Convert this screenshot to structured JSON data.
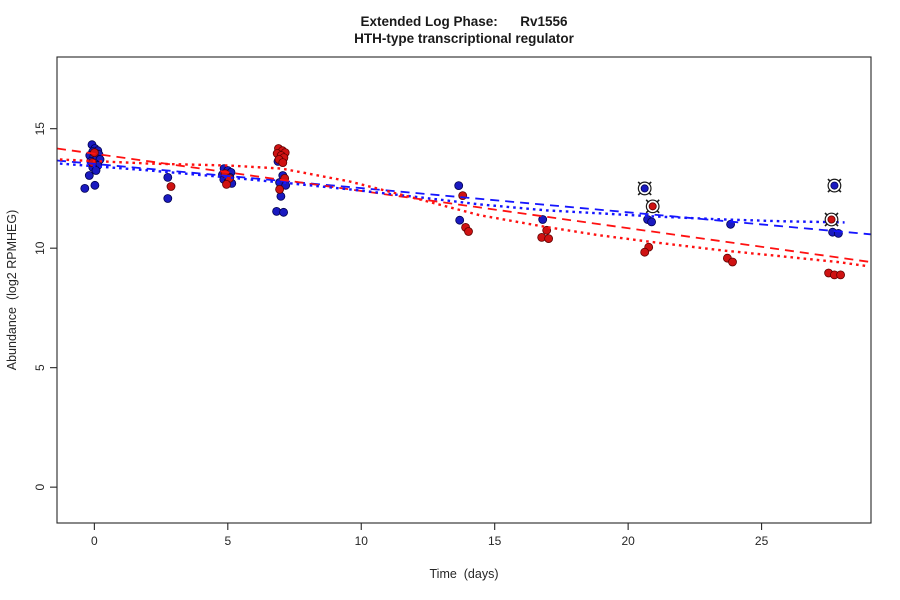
{
  "title": {
    "line1": "Extended Log Phase:      Rv1556",
    "line2": "HTH-type transcriptional regulator"
  },
  "colors": {
    "blue_point": "#1a1ac0",
    "blue_point_stroke": "#000050",
    "red_point": "#cf1212",
    "red_point_stroke": "#600000",
    "blue_line": "#1515ff",
    "red_line": "#ff1111",
    "outline_marker": "#1a1a1a",
    "axis": "#262626"
  },
  "chart_data": {
    "type": "scatter",
    "title": "Extended Log Phase:      Rv1556",
    "subtitle": "HTH-type transcriptional regulator",
    "xlabel": "Time  (days)",
    "ylabel": "Abundance  (log2 RPMHEG)",
    "xlim": [
      -1.4,
      29.1
    ],
    "ylim": [
      -1.5,
      18.0
    ],
    "x_ticks": [
      0,
      5,
      10,
      15,
      20,
      25
    ],
    "y_ticks": [
      0,
      5,
      10,
      15
    ],
    "grid": false,
    "legend": "none",
    "series": [
      {
        "name": "blue-points",
        "type": "scatter",
        "color": "#1a1ac0",
        "points": [
          [
            -0.09,
            14.33
          ],
          [
            0.02,
            14.17
          ],
          [
            0.13,
            14.08
          ],
          [
            -0.06,
            14.04
          ],
          [
            0.06,
            13.96
          ],
          [
            0.17,
            13.92
          ],
          [
            -0.17,
            13.88
          ],
          [
            -0.02,
            13.83
          ],
          [
            0.09,
            13.75
          ],
          [
            0.21,
            13.71
          ],
          [
            -0.13,
            13.63
          ],
          [
            0.02,
            13.54
          ],
          [
            0.13,
            13.46
          ],
          [
            -0.06,
            13.38
          ],
          [
            0.06,
            13.25
          ],
          [
            -0.19,
            13.04
          ],
          [
            -0.36,
            12.5
          ],
          [
            0.02,
            12.63
          ],
          [
            2.75,
            12.96
          ],
          [
            2.75,
            12.08
          ],
          [
            4.86,
            13.33
          ],
          [
            5.0,
            13.25
          ],
          [
            5.12,
            13.17
          ],
          [
            4.8,
            13.08
          ],
          [
            4.95,
            13.0
          ],
          [
            5.08,
            12.96
          ],
          [
            4.85,
            12.88
          ],
          [
            5.02,
            12.79
          ],
          [
            5.15,
            12.71
          ],
          [
            6.95,
            13.92
          ],
          [
            7.08,
            13.75
          ],
          [
            6.88,
            13.63
          ],
          [
            7.06,
            13.04
          ],
          [
            6.94,
            12.75
          ],
          [
            7.17,
            12.63
          ],
          [
            6.99,
            12.17
          ],
          [
            6.83,
            11.54
          ],
          [
            7.09,
            11.5
          ],
          [
            13.65,
            12.62
          ],
          [
            13.69,
            11.17
          ],
          [
            16.8,
            11.2
          ],
          [
            20.73,
            11.2
          ],
          [
            20.88,
            11.1
          ],
          [
            23.84,
            11.0
          ],
          [
            27.66,
            10.67
          ],
          [
            27.88,
            10.62
          ]
        ]
      },
      {
        "name": "red-points",
        "type": "scatter",
        "color": "#cf1212",
        "points": [
          [
            0.0,
            14.0
          ],
          [
            -0.08,
            13.58
          ],
          [
            2.87,
            12.58
          ],
          [
            4.9,
            13.12
          ],
          [
            5.06,
            12.92
          ],
          [
            4.95,
            12.67
          ],
          [
            6.9,
            14.17
          ],
          [
            7.05,
            14.08
          ],
          [
            7.15,
            14.0
          ],
          [
            6.85,
            13.96
          ],
          [
            7.0,
            13.88
          ],
          [
            7.1,
            13.79
          ],
          [
            6.92,
            13.71
          ],
          [
            7.06,
            13.58
          ],
          [
            7.13,
            12.92
          ],
          [
            6.94,
            12.46
          ],
          [
            13.8,
            12.2
          ],
          [
            13.91,
            10.87
          ],
          [
            14.02,
            10.7
          ],
          [
            16.95,
            10.75
          ],
          [
            16.76,
            10.45
          ],
          [
            17.02,
            10.4
          ],
          [
            20.77,
            10.04
          ],
          [
            20.62,
            9.83
          ],
          [
            23.72,
            9.58
          ],
          [
            23.91,
            9.42
          ],
          [
            27.51,
            8.96
          ],
          [
            27.73,
            8.88
          ],
          [
            27.96,
            8.88
          ]
        ]
      },
      {
        "name": "blue-linear-fit",
        "type": "line",
        "style": "dashed",
        "color": "#1515ff",
        "points": [
          [
            -1.4,
            13.67
          ],
          [
            29.08,
            10.58
          ]
        ]
      },
      {
        "name": "red-linear-fit",
        "type": "line",
        "style": "dashed",
        "color": "#ff1111",
        "points": [
          [
            -1.4,
            14.17
          ],
          [
            29.08,
            9.42
          ]
        ]
      },
      {
        "name": "blue-smooth-fit",
        "type": "line",
        "style": "dotted",
        "color": "#1515ff",
        "points": [
          [
            -1.29,
            13.54
          ],
          [
            2.08,
            13.25
          ],
          [
            5.0,
            12.96
          ],
          [
            7.02,
            12.75
          ],
          [
            9.57,
            12.46
          ],
          [
            12.19,
            12.13
          ],
          [
            14.44,
            11.83
          ],
          [
            16.95,
            11.58
          ],
          [
            18.93,
            11.46
          ],
          [
            20.95,
            11.33
          ],
          [
            23.42,
            11.21
          ],
          [
            25.67,
            11.13
          ],
          [
            28.11,
            11.08
          ]
        ]
      },
      {
        "name": "red-smooth-fit",
        "type": "line",
        "style": "dotted",
        "color": "#ff1111",
        "points": [
          [
            -1.29,
            13.71
          ],
          [
            2.08,
            13.54
          ],
          [
            5.0,
            13.46
          ],
          [
            7.02,
            13.33
          ],
          [
            9.57,
            12.79
          ],
          [
            12.19,
            12.04
          ],
          [
            14.44,
            11.38
          ],
          [
            16.95,
            10.88
          ],
          [
            18.93,
            10.54
          ],
          [
            20.95,
            10.25
          ],
          [
            23.42,
            9.92
          ],
          [
            25.67,
            9.67
          ],
          [
            27.85,
            9.42
          ],
          [
            28.97,
            9.25
          ]
        ]
      },
      {
        "name": "blue-outlined-points",
        "type": "scatter",
        "marker": "circled",
        "color": "#1a1ac0",
        "points": [
          [
            20.62,
            12.5
          ],
          [
            27.73,
            12.62
          ]
        ]
      },
      {
        "name": "red-outlined-points",
        "type": "scatter",
        "marker": "circled",
        "color": "#cf1212",
        "points": [
          [
            20.92,
            11.75
          ],
          [
            27.62,
            11.2
          ]
        ]
      }
    ]
  }
}
